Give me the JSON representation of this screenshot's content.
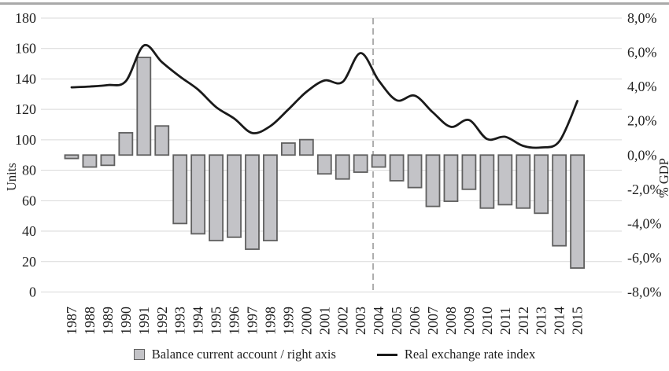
{
  "chart_data": {
    "type": "combo-bar-line",
    "title": "",
    "categories": [
      "1987",
      "1988",
      "1989",
      "1990",
      "1991",
      "1992",
      "1993",
      "1994",
      "1995",
      "1996",
      "1997",
      "1998",
      "1999",
      "2000",
      "2001",
      "2002",
      "2003",
      "2004",
      "2005",
      "2006",
      "2007",
      "2008",
      "2009",
      "2010",
      "2011",
      "2012",
      "2013",
      "2014",
      "2015"
    ],
    "series": [
      {
        "name": "Balance current account / right axis",
        "type": "bar",
        "axis": "right",
        "unit": "% GDP",
        "values": [
          -0.2,
          -0.7,
          -0.6,
          1.3,
          5.7,
          1.7,
          -4.0,
          -4.6,
          -5.0,
          -4.8,
          -5.5,
          -5.0,
          0.7,
          0.9,
          -1.1,
          -1.4,
          -1.0,
          -0.7,
          -1.5,
          -1.9,
          -3.0,
          -2.7,
          -2.0,
          -3.1,
          -2.9,
          -3.1,
          -3.4,
          -5.3,
          -6.6
        ]
      },
      {
        "name": "Real exchange rate index",
        "type": "line",
        "axis": "left",
        "unit": "Units",
        "values": [
          134.5,
          135,
          136,
          138.5,
          162,
          151,
          141.5,
          133,
          121.5,
          114,
          104.5,
          109,
          120,
          131.5,
          139,
          138,
          157,
          139,
          126,
          129,
          118,
          108.5,
          113,
          100.5,
          102,
          96,
          95,
          99,
          125.5
        ]
      }
    ],
    "left_axis": {
      "title": "Units",
      "min": 0,
      "max": 180,
      "tick_step": 20,
      "tick_labels": [
        "180",
        "160",
        "140",
        "120",
        "100",
        "80",
        "60",
        "40",
        "20",
        "0"
      ]
    },
    "right_axis": {
      "title": "% GDP",
      "min": -8,
      "max": 8,
      "tick_step": 2,
      "tick_labels": [
        "8,0%",
        "6,0%",
        "4,0%",
        "2,0%",
        "0,0%",
        "-2,0%",
        "-4,0%",
        "-6,0%",
        "-8,0%"
      ]
    },
    "legend": [
      {
        "label": "Balance current account / right axis",
        "swatch": "bar"
      },
      {
        "label": "Real exchange rate index",
        "swatch": "line"
      }
    ],
    "legend_position": "bottom",
    "grid": "horizontal",
    "annotations": {
      "dashed_vline_between": [
        "2003",
        "2004"
      ],
      "dashed_vline_fraction": 0.69
    },
    "colors": {
      "bar_fill": "#c3c3c7",
      "bar_stroke": "#606060",
      "line": "#1a1a1a",
      "gridline": "#d9d9d9",
      "dashed": "#a6a6a6",
      "top_border": "#a9a9a9",
      "text": "#1f1f1f"
    }
  }
}
